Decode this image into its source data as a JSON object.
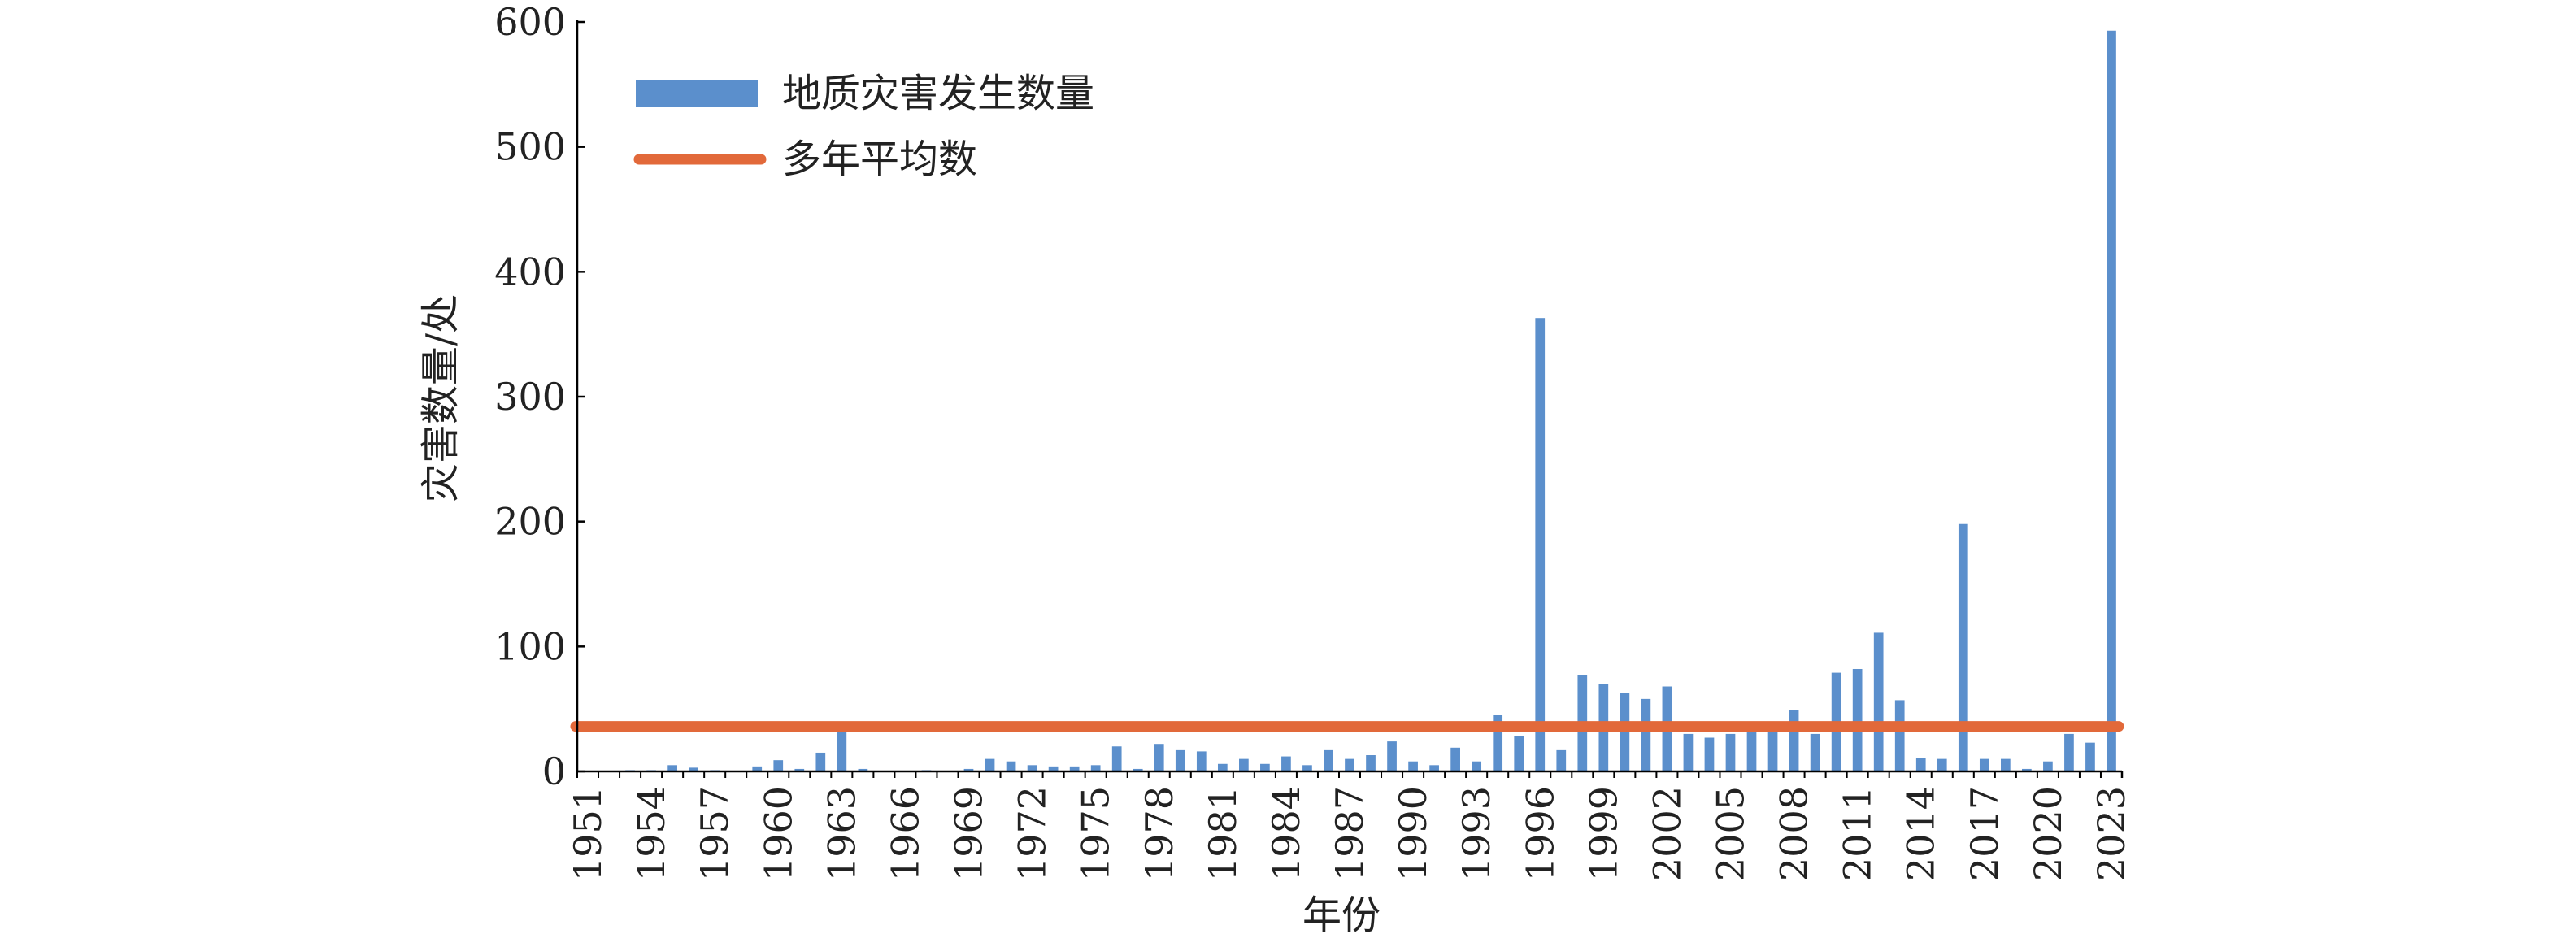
{
  "chart_data": {
    "type": "bar",
    "xlabel": "年份",
    "ylabel": "灾害数量/处",
    "ylim": [
      0,
      600
    ],
    "yticks": [
      0,
      100,
      200,
      300,
      400,
      500,
      600
    ],
    "x_tick_labels": [
      "1951",
      "1954",
      "1957",
      "1960",
      "1963",
      "1966",
      "1969",
      "1972",
      "1975",
      "1978",
      "1981",
      "1984",
      "1987",
      "1990",
      "1993",
      "1996",
      "1999",
      "2002",
      "2005",
      "2008",
      "2011",
      "2014",
      "2017",
      "2020",
      "2023"
    ],
    "categories": [
      "1951",
      "1952",
      "1953",
      "1954",
      "1955",
      "1956",
      "1957",
      "1958",
      "1959",
      "1960",
      "1961",
      "1962",
      "1963",
      "1964",
      "1965",
      "1966",
      "1967",
      "1968",
      "1969",
      "1970",
      "1971",
      "1972",
      "1973",
      "1974",
      "1975",
      "1976",
      "1977",
      "1978",
      "1979",
      "1980",
      "1981",
      "1982",
      "1983",
      "1984",
      "1985",
      "1986",
      "1987",
      "1988",
      "1989",
      "1990",
      "1991",
      "1992",
      "1993",
      "1994",
      "1995",
      "1996",
      "1997",
      "1998",
      "1999",
      "2000",
      "2001",
      "2002",
      "2003",
      "2004",
      "2005",
      "2006",
      "2007",
      "2008",
      "2009",
      "2010",
      "2011",
      "2012",
      "2013",
      "2014",
      "2015",
      "2016",
      "2017",
      "2018",
      "2019",
      "2020",
      "2021",
      "2022",
      "2023"
    ],
    "series": [
      {
        "name": "地质灾害发生数量",
        "type": "bar",
        "color": "#5b8fcc",
        "values": [
          0,
          0,
          1,
          1,
          5,
          3,
          1,
          0,
          4,
          9,
          2,
          15,
          32,
          2,
          0,
          0,
          1,
          0,
          2,
          10,
          8,
          5,
          4,
          4,
          5,
          20,
          2,
          22,
          17,
          16,
          6,
          10,
          6,
          12,
          5,
          17,
          10,
          13,
          24,
          8,
          5,
          19,
          8,
          45,
          28,
          363,
          17,
          77,
          70,
          63,
          58,
          68,
          30,
          27,
          30,
          35,
          40,
          49,
          30,
          79,
          82,
          111,
          57,
          11,
          10,
          198,
          10,
          10,
          2,
          8,
          30,
          23,
          593
        ]
      },
      {
        "name": "多年平均数",
        "type": "line",
        "color": "#e2693a",
        "value": 36
      }
    ],
    "legend": "top-left",
    "grid": false
  }
}
